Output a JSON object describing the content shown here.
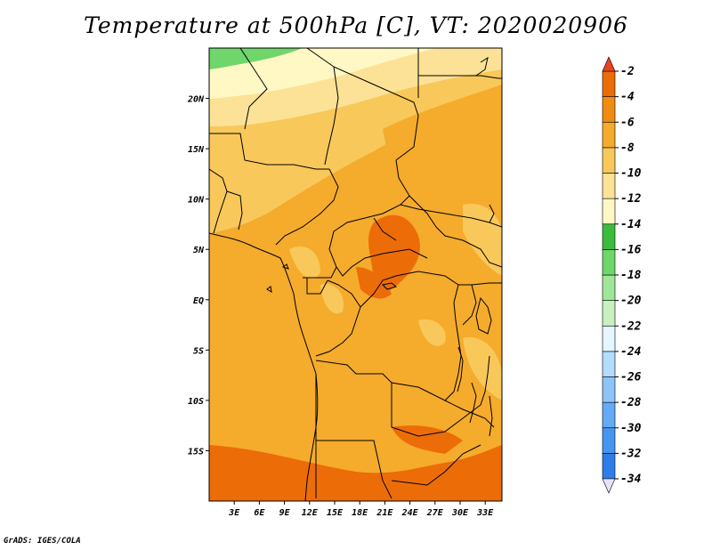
{
  "title": "Temperature at 500hPa [C], VT: 2020020906",
  "credit": "GrADS: IGES/COLA",
  "map": {
    "projection": "latlon",
    "lon_range": [
      0,
      35
    ],
    "lat_range": [
      -20,
      25
    ],
    "lat_ticks": [
      {
        "value": 20,
        "label": "20N"
      },
      {
        "value": 15,
        "label": "15N"
      },
      {
        "value": 10,
        "label": "10N"
      },
      {
        "value": 5,
        "label": "5N"
      },
      {
        "value": 0,
        "label": "EQ"
      },
      {
        "value": -5,
        "label": "5S"
      },
      {
        "value": -10,
        "label": "10S"
      },
      {
        "value": -15,
        "label": "15S"
      }
    ],
    "lon_ticks": [
      {
        "value": 3,
        "label": "3E"
      },
      {
        "value": 6,
        "label": "6E"
      },
      {
        "value": 9,
        "label": "9E"
      },
      {
        "value": 12,
        "label": "12E"
      },
      {
        "value": 15,
        "label": "15E"
      },
      {
        "value": 18,
        "label": "18E"
      },
      {
        "value": 21,
        "label": "21E"
      },
      {
        "value": 24,
        "label": "24E"
      },
      {
        "value": 27,
        "label": "27E"
      },
      {
        "value": 30,
        "label": "30E"
      },
      {
        "value": 33,
        "label": "33E"
      }
    ]
  },
  "colorbar": {
    "colors": [
      "#0c0a78",
      "#1a46c8",
      "#2060d8",
      "#2e7ee8",
      "#4696f0",
      "#64aaf4",
      "#8cc4f8",
      "#b4dcfc",
      "#e4f6ff",
      "#c8f0c0",
      "#a0e69a",
      "#6ed66a",
      "#3cbc3c",
      "#fff8c4",
      "#fce296",
      "#f8c85a",
      "#f5ab2c",
      "#f08c10",
      "#ec6c08",
      "#e8431e"
    ],
    "labels": [
      "-34",
      "-32",
      "-30",
      "-28",
      "-26",
      "-24",
      "-22",
      "-20",
      "-18",
      "-16",
      "-14",
      "-12",
      "-10",
      "-8",
      "-6",
      "-4",
      "-2"
    ],
    "low_arrow_color": "#e4e4f8",
    "high_arrow_color": "#e8431e"
  }
}
